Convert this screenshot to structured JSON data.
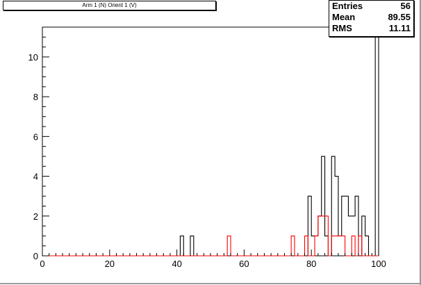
{
  "chart_data": {
    "type": "histogram",
    "title": "Arm 1 (N) Orient 1 (V)",
    "xlabel": "",
    "ylabel": "",
    "xlim": [
      0,
      100
    ],
    "ylim": [
      0,
      11.5
    ],
    "x_ticks": [
      0,
      20,
      40,
      60,
      80,
      100
    ],
    "y_ticks": [
      0,
      2,
      4,
      6,
      8,
      10
    ],
    "bin_width": 1,
    "series": [
      {
        "color": "#000000",
        "bins": [
          {
            "x": 41,
            "count": 1
          },
          {
            "x": 44,
            "count": 1
          },
          {
            "x": 79,
            "count": 3
          },
          {
            "x": 80,
            "count": 1
          },
          {
            "x": 81,
            "count": 1
          },
          {
            "x": 82,
            "count": 2
          },
          {
            "x": 83,
            "count": 5
          },
          {
            "x": 84,
            "count": 1
          },
          {
            "x": 86,
            "count": 5
          },
          {
            "x": 87,
            "count": 4
          },
          {
            "x": 88,
            "count": 1
          },
          {
            "x": 89,
            "count": 3
          },
          {
            "x": 90,
            "count": 3
          },
          {
            "x": 91,
            "count": 2
          },
          {
            "x": 92,
            "count": 2
          },
          {
            "x": 93,
            "count": 3
          },
          {
            "x": 95,
            "count": 2
          },
          {
            "x": 96,
            "count": 1
          },
          {
            "x": 99,
            "count": 11
          }
        ]
      },
      {
        "color": "#ff0000",
        "bins": [
          {
            "x": 55,
            "count": 1
          },
          {
            "x": 74,
            "count": 1
          },
          {
            "x": 78,
            "count": 1
          },
          {
            "x": 81,
            "count": 1
          },
          {
            "x": 82,
            "count": 2
          },
          {
            "x": 83,
            "count": 2
          },
          {
            "x": 84,
            "count": 2
          },
          {
            "x": 86,
            "count": 1
          },
          {
            "x": 87,
            "count": 1
          },
          {
            "x": 88,
            "count": 1
          },
          {
            "x": 89,
            "count": 1
          },
          {
            "x": 92,
            "count": 1
          },
          {
            "x": 94,
            "count": 1
          }
        ]
      }
    ]
  },
  "stats": {
    "entries_label": "Entries",
    "entries_value": "56",
    "mean_label": "Mean",
    "mean_value": "89.55",
    "rms_label": "RMS",
    "rms_value": "11.11"
  }
}
